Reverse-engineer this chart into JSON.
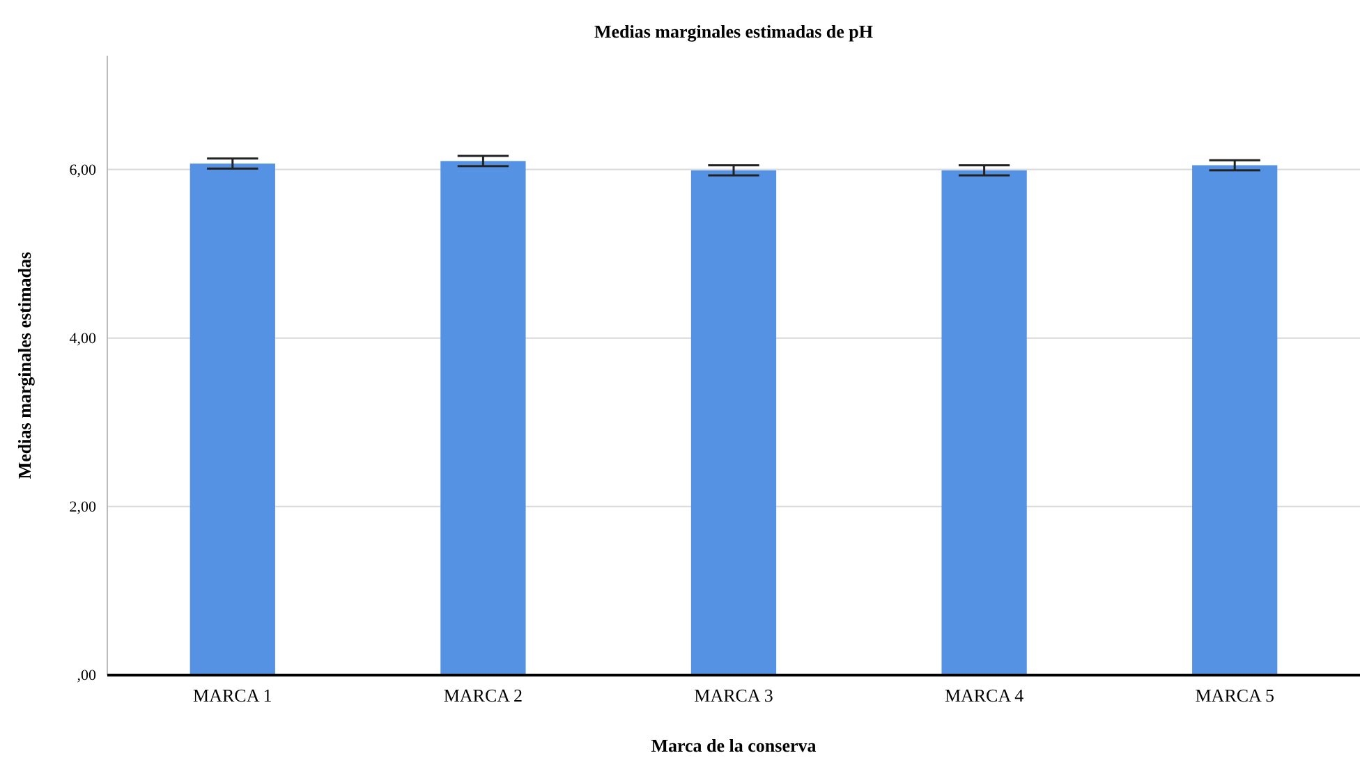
{
  "chart_data": {
    "type": "bar",
    "title": "Medias marginales estimadas de pH",
    "xlabel": "Marca de la conserva",
    "ylabel": "Medias marginales estimadas",
    "categories": [
      "MARCA 1",
      "MARCA 2",
      "MARCA 3",
      "MARCA 4",
      "MARCA 5"
    ],
    "values": [
      6.07,
      6.1,
      5.99,
      5.99,
      6.05
    ],
    "errors": [
      0.06,
      0.06,
      0.06,
      0.06,
      0.06
    ],
    "color": "#5592e3",
    "ylim": [
      0,
      7.35
    ],
    "yticks": [
      {
        "value": 0,
        "label": ",00"
      },
      {
        "value": 2,
        "label": "2,00"
      },
      {
        "value": 4,
        "label": "4,00"
      },
      {
        "value": 6,
        "label": "6,00"
      }
    ],
    "grid": "y"
  }
}
